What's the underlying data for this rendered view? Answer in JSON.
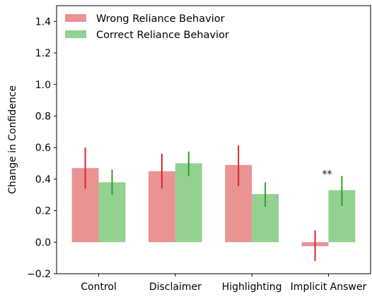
{
  "chart_data": {
    "type": "bar",
    "categories": [
      "Control",
      "Disclaimer",
      "Highlighting",
      "Implicit Answer"
    ],
    "series": [
      {
        "name": "Wrong Reliance Behavior",
        "values": [
          0.47,
          0.45,
          0.49,
          -0.025
        ],
        "err_low": [
          0.34,
          0.34,
          0.355,
          -0.12
        ],
        "err_high": [
          0.6,
          0.56,
          0.615,
          0.075
        ],
        "color": "#e99393",
        "error_color": "#d62728"
      },
      {
        "name": "Correct Reliance Behavior",
        "values": [
          0.38,
          0.5,
          0.305,
          0.33
        ],
        "err_low": [
          0.3,
          0.42,
          0.225,
          0.23
        ],
        "err_high": [
          0.46,
          0.575,
          0.38,
          0.42
        ],
        "color": "#92d18f",
        "error_color": "#2ca02c"
      }
    ],
    "ylabel": "Change in Confidence",
    "xlabel": "",
    "ylim": [
      -0.2,
      1.5
    ],
    "yticks": [
      -0.2,
      0.0,
      0.2,
      0.4,
      0.6,
      0.8,
      1.0,
      1.2,
      1.4
    ],
    "ytick_labels": [
      "−0.2",
      "0.0",
      "0.2",
      "0.4",
      "0.6",
      "0.8",
      "1.0",
      "1.2",
      "1.4"
    ],
    "legend_position": "top-left",
    "grid": false,
    "annotations": [
      {
        "text": "**",
        "category_index": 3,
        "series_index": 1
      }
    ]
  }
}
